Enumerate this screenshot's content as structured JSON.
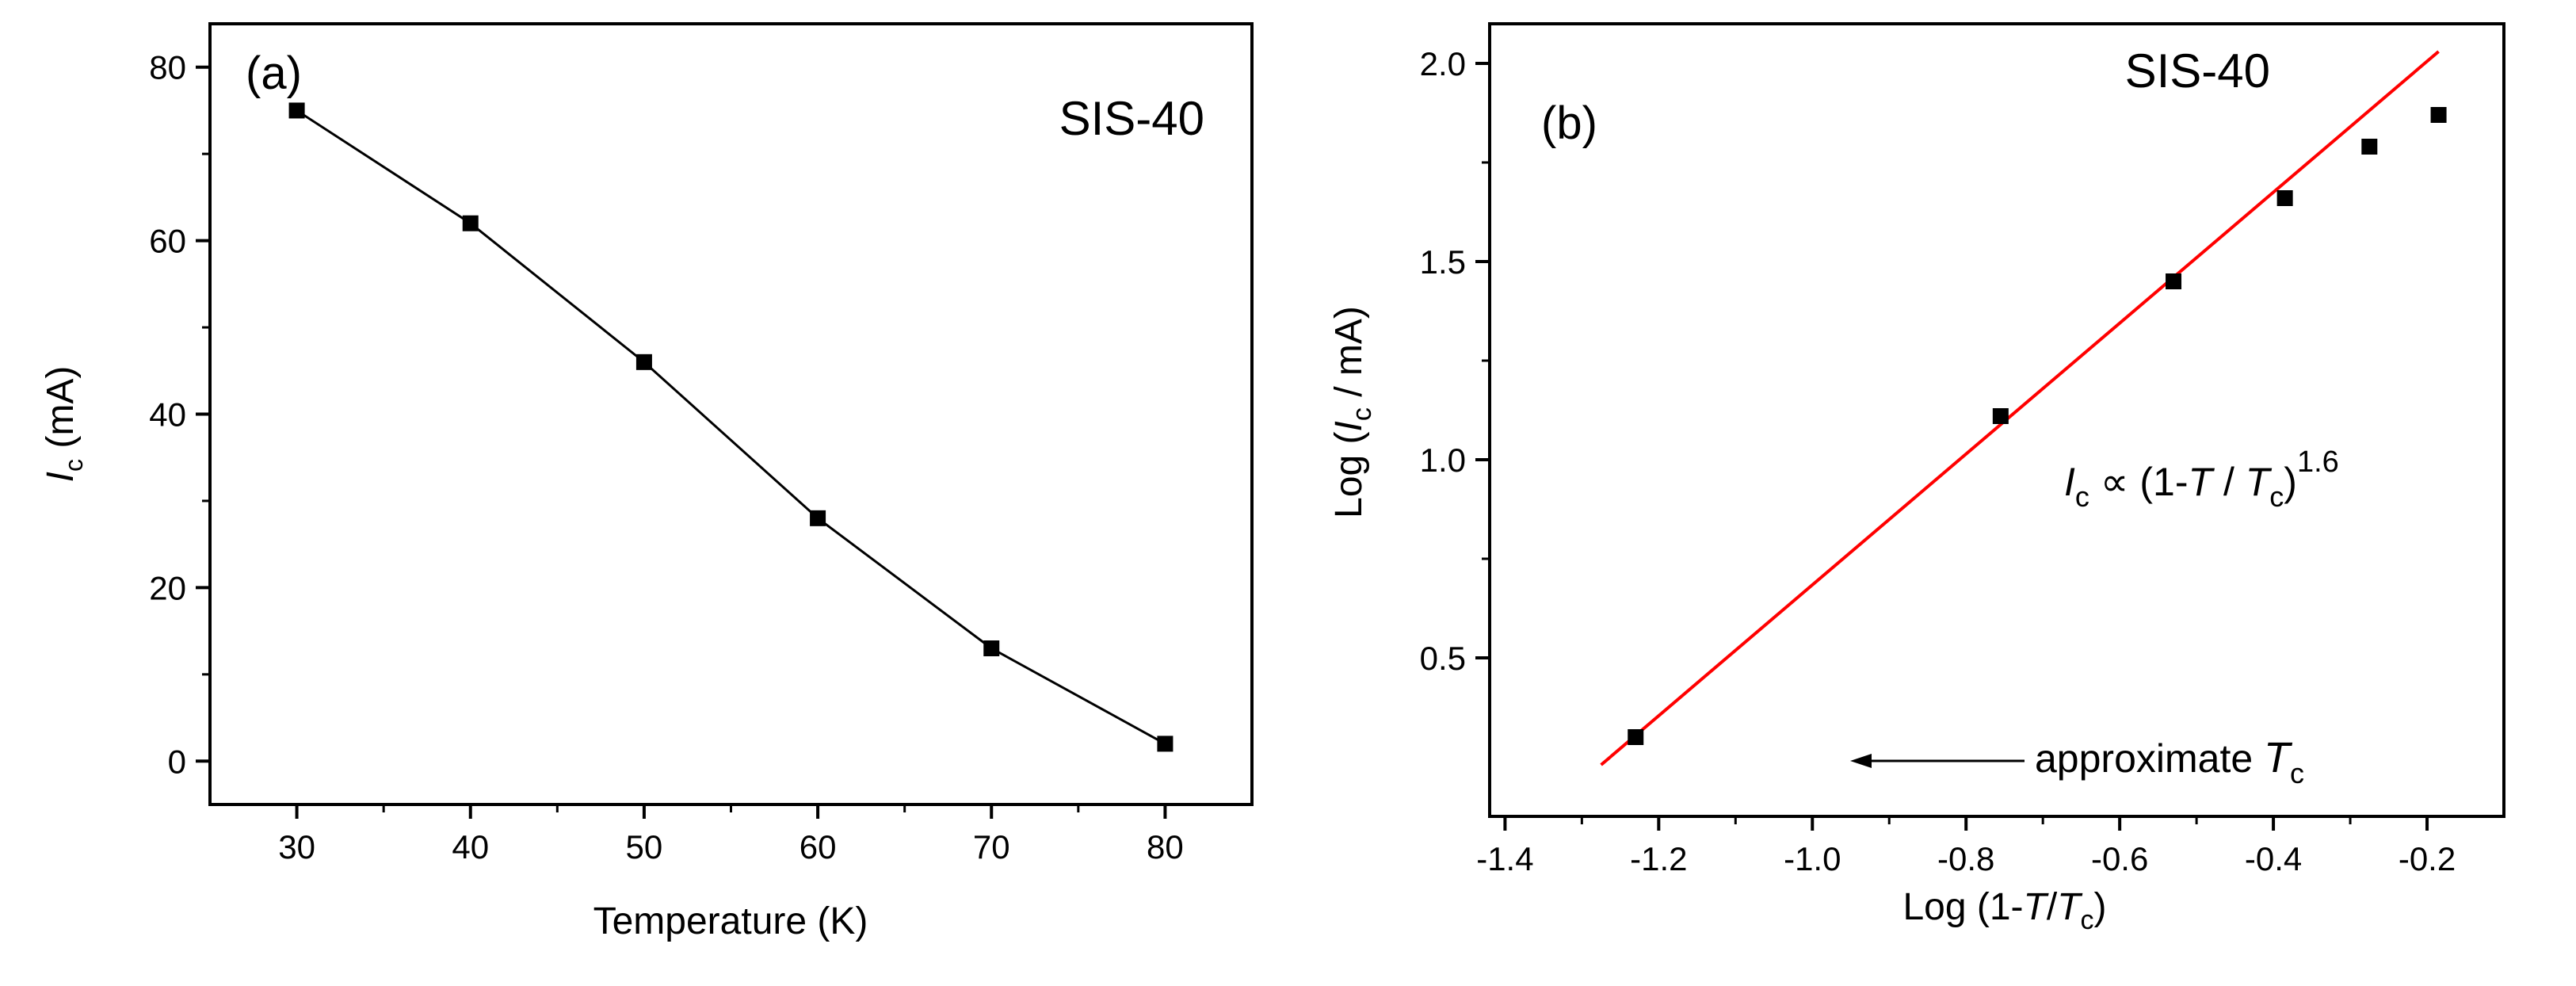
{
  "chart_data": [
    {
      "panel_label": "(a)",
      "sample_label": "SIS-40",
      "type": "line",
      "xlabel": "Temperature (K)",
      "ylabel_main": "I",
      "ylabel_sub": "c",
      "ylabel_unit": " (mA)",
      "xlim": [
        25,
        85
      ],
      "ylim": [
        -5,
        85
      ],
      "xticks": [
        30,
        40,
        50,
        60,
        70,
        80
      ],
      "yticks": [
        0,
        20,
        40,
        60,
        80
      ],
      "x": [
        30,
        40,
        50,
        60,
        70,
        80
      ],
      "y": [
        75,
        62,
        46,
        28,
        13,
        2
      ],
      "colors": {
        "data": "#000000",
        "line": "#000000"
      }
    },
    {
      "panel_label": "(b)",
      "sample_label": "SIS-40",
      "type": "scatter",
      "xlabel_prefix": "Log (1-",
      "xlabel_t": "T",
      "xlabel_slash": "/",
      "xlabel_tc": "T",
      "xlabel_sub": "c",
      "xlabel_suffix": ")",
      "ylabel_prefix": "Log (",
      "ylabel_i": "I",
      "ylabel_sub": "c",
      "ylabel_suffix": " / mA)",
      "xlim": [
        -1.42,
        -0.1
      ],
      "ylim": [
        0.1,
        2.1
      ],
      "xticks": [
        -1.4,
        -1.2,
        -1.0,
        -0.8,
        -0.6,
        -0.4,
        -0.2
      ],
      "xtick_labels": [
        "-1.4",
        "-1.2",
        "-1.0",
        "-0.8",
        "-0.6",
        "-0.4",
        "-0.2"
      ],
      "yticks": [
        0.5,
        1.0,
        1.5,
        2.0
      ],
      "ytick_labels": [
        "0.5",
        "1.0",
        "1.5",
        "2.0"
      ],
      "x": [
        -1.23,
        -0.755,
        -0.53,
        -0.385,
        -0.275,
        -0.185
      ],
      "y": [
        0.3,
        1.11,
        1.45,
        1.66,
        1.79,
        1.87
      ],
      "fit": {
        "x": [
          -1.275,
          -0.185
        ],
        "y": [
          0.23,
          2.03
        ],
        "color": "#ff0000"
      },
      "annotation_formula": {
        "i": "I",
        "i_sub": "c",
        "prop": " ∝ (1-",
        "t": "T",
        "slash": " / ",
        "tc": "T",
        "tc_sub": "c",
        "close": ")",
        "exponent": "1.6"
      },
      "annotation_arrow": {
        "text": "approximate ",
        "t": "T",
        "t_sub": "c"
      },
      "colors": {
        "data": "#000000"
      }
    }
  ]
}
